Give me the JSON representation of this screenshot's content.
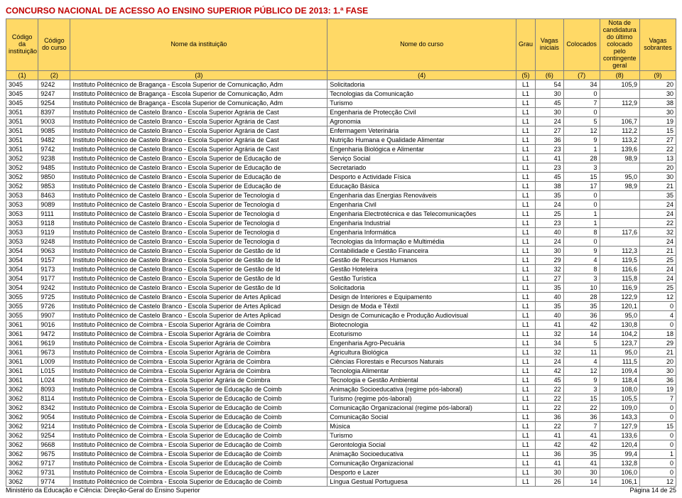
{
  "title": "CONCURSO NACIONAL DE ACESSO AO ENSINO SUPERIOR PÚBLICO DE 2013: 1.ª FASE",
  "headers": {
    "c1": "Código da instituição",
    "c2": "Código do curso",
    "c3": "Nome da instituição",
    "c4": "Nome do curso",
    "c5": "Grau",
    "c6": "Vagas iniciais",
    "c7": "Colocados",
    "c8": "Nota de candidatura do último colocado pelo contingente geral",
    "c9": "Vagas sobrantes"
  },
  "idxRow": [
    "(1)",
    "(2)",
    "(3)",
    "(4)",
    "(5)",
    "(6)",
    "(7)",
    "(8)",
    "(9)"
  ],
  "rows": [
    [
      "3045",
      "9242",
      "Instituto Politécnico de Bragança - Escola Superior de Comunicação, Adm",
      "Solicitadoria",
      "L1",
      "54",
      "34",
      "105,9",
      "20"
    ],
    [
      "3045",
      "9247",
      "Instituto Politécnico de Bragança - Escola Superior de Comunicação, Adm",
      "Tecnologias da Comunicação",
      "L1",
      "30",
      "0",
      "",
      "30"
    ],
    [
      "3045",
      "9254",
      "Instituto Politécnico de Bragança - Escola Superior de Comunicação, Adm",
      "Turismo",
      "L1",
      "45",
      "7",
      "112,9",
      "38"
    ],
    [
      "3051",
      "8397",
      "Instituto Politécnico de Castelo Branco - Escola Superior Agrária de Cast",
      "Engenharia de Protecção Civil",
      "L1",
      "30",
      "0",
      "",
      "30"
    ],
    [
      "3051",
      "9003",
      "Instituto Politécnico de Castelo Branco - Escola Superior Agrária de Cast",
      "Agronomia",
      "L1",
      "24",
      "5",
      "106,7",
      "19"
    ],
    [
      "3051",
      "9085",
      "Instituto Politécnico de Castelo Branco - Escola Superior Agrária de Cast",
      "Enfermagem Veterinária",
      "L1",
      "27",
      "12",
      "112,2",
      "15"
    ],
    [
      "3051",
      "9482",
      "Instituto Politécnico de Castelo Branco - Escola Superior Agrária de Cast",
      "Nutrição Humana e Qualidade Alimentar",
      "L1",
      "36",
      "9",
      "113,2",
      "27"
    ],
    [
      "3051",
      "9742",
      "Instituto Politécnico de Castelo Branco - Escola Superior Agrária de Cast",
      "Engenharia Biológica e Alimentar",
      "L1",
      "23",
      "1",
      "139,6",
      "22"
    ],
    [
      "3052",
      "9238",
      "Instituto Politécnico de Castelo Branco - Escola Superior de Educação de",
      "Serviço Social",
      "L1",
      "41",
      "28",
      "98,9",
      "13"
    ],
    [
      "3052",
      "9485",
      "Instituto Politécnico de Castelo Branco - Escola Superior de Educação de",
      "Secretariado",
      "L1",
      "23",
      "3",
      "",
      "20"
    ],
    [
      "3052",
      "9850",
      "Instituto Politécnico de Castelo Branco - Escola Superior de Educação de",
      "Desporto e Actividade Física",
      "L1",
      "45",
      "15",
      "95,0",
      "30"
    ],
    [
      "3052",
      "9853",
      "Instituto Politécnico de Castelo Branco - Escola Superior de Educação de",
      "Educação Básica",
      "L1",
      "38",
      "17",
      "98,9",
      "21"
    ],
    [
      "3053",
      "8463",
      "Instituto Politécnico de Castelo Branco - Escola Superior de Tecnologia d",
      "Engenharia das Energias Renováveis",
      "L1",
      "35",
      "0",
      "",
      "35"
    ],
    [
      "3053",
      "9089",
      "Instituto Politécnico de Castelo Branco - Escola Superior de Tecnologia d",
      "Engenharia Civil",
      "L1",
      "24",
      "0",
      "",
      "24"
    ],
    [
      "3053",
      "9111",
      "Instituto Politécnico de Castelo Branco - Escola Superior de Tecnologia d",
      "Engenharia Electrotécnica e das Telecomunicações",
      "L1",
      "25",
      "1",
      "",
      "24"
    ],
    [
      "3053",
      "9118",
      "Instituto Politécnico de Castelo Branco - Escola Superior de Tecnologia d",
      "Engenharia Industrial",
      "L1",
      "23",
      "1",
      "",
      "22"
    ],
    [
      "3053",
      "9119",
      "Instituto Politécnico de Castelo Branco - Escola Superior de Tecnologia d",
      "Engenharia Informática",
      "L1",
      "40",
      "8",
      "117,6",
      "32"
    ],
    [
      "3053",
      "9248",
      "Instituto Politécnico de Castelo Branco - Escola Superior de Tecnologia d",
      "Tecnologias da Informação e Multimédia",
      "L1",
      "24",
      "0",
      "",
      "24"
    ],
    [
      "3054",
      "9063",
      "Instituto Politécnico de Castelo Branco - Escola Superior de Gestão de Id",
      "Contabilidade e Gestão Financeira",
      "L1",
      "30",
      "9",
      "112,3",
      "21"
    ],
    [
      "3054",
      "9157",
      "Instituto Politécnico de Castelo Branco - Escola Superior de Gestão de Id",
      "Gestão de Recursos Humanos",
      "L1",
      "29",
      "4",
      "119,5",
      "25"
    ],
    [
      "3054",
      "9173",
      "Instituto Politécnico de Castelo Branco - Escola Superior de Gestão de Id",
      "Gestão Hoteleira",
      "L1",
      "32",
      "8",
      "116,6",
      "24"
    ],
    [
      "3054",
      "9177",
      "Instituto Politécnico de Castelo Branco - Escola Superior de Gestão de Id",
      "Gestão Turística",
      "L1",
      "27",
      "3",
      "115,8",
      "24"
    ],
    [
      "3054",
      "9242",
      "Instituto Politécnico de Castelo Branco - Escola Superior de Gestão de Id",
      "Solicitadoria",
      "L1",
      "35",
      "10",
      "116,9",
      "25"
    ],
    [
      "3055",
      "9725",
      "Instituto Politécnico de Castelo Branco - Escola Superior de Artes Aplicad",
      "Design de Interiores e Equipamento",
      "L1",
      "40",
      "28",
      "122,9",
      "12"
    ],
    [
      "3055",
      "9726",
      "Instituto Politécnico de Castelo Branco - Escola Superior de Artes Aplicad",
      "Design de Moda e Têxtil",
      "L1",
      "35",
      "35",
      "120,1",
      "0"
    ],
    [
      "3055",
      "9907",
      "Instituto Politécnico de Castelo Branco - Escola Superior de Artes Aplicad",
      "Design de Comunicação e Produção Audiovisual",
      "L1",
      "40",
      "36",
      "95,0",
      "4"
    ],
    [
      "3061",
      "9016",
      "Instituto Politécnico de Coimbra - Escola Superior Agrária de Coimbra",
      "Biotecnologia",
      "L1",
      "41",
      "42",
      "130,8",
      "0"
    ],
    [
      "3061",
      "9472",
      "Instituto Politécnico de Coimbra - Escola Superior Agrária de Coimbra",
      "Ecoturismo",
      "L1",
      "32",
      "14",
      "104,2",
      "18"
    ],
    [
      "3061",
      "9619",
      "Instituto Politécnico de Coimbra - Escola Superior Agrária de Coimbra",
      "Engenharia Agro-Pecuária",
      "L1",
      "34",
      "5",
      "123,7",
      "29"
    ],
    [
      "3061",
      "9673",
      "Instituto Politécnico de Coimbra - Escola Superior Agrária de Coimbra",
      "Agricultura Biológica",
      "L1",
      "32",
      "11",
      "95,0",
      "21"
    ],
    [
      "3061",
      "L009",
      "Instituto Politécnico de Coimbra - Escola Superior Agrária de Coimbra",
      "Ciências Florestais e Recursos Naturais",
      "L1",
      "24",
      "4",
      "111,5",
      "20"
    ],
    [
      "3061",
      "L015",
      "Instituto Politécnico de Coimbra - Escola Superior Agrária de Coimbra",
      "Tecnologia Alimentar",
      "L1",
      "42",
      "12",
      "109,4",
      "30"
    ],
    [
      "3061",
      "L024",
      "Instituto Politécnico de Coimbra - Escola Superior Agrária de Coimbra",
      "Tecnologia e Gestão Ambiental",
      "L1",
      "45",
      "9",
      "118,4",
      "36"
    ],
    [
      "3062",
      "8093",
      "Instituto Politécnico de Coimbra - Escola Superior de Educação de Coimb",
      "Animação Socioeducativa (regime pós-laboral)",
      "L1",
      "22",
      "3",
      "108,0",
      "19"
    ],
    [
      "3062",
      "8114",
      "Instituto Politécnico de Coimbra - Escola Superior de Educação de Coimb",
      "Turismo (regime pós-laboral)",
      "L1",
      "22",
      "15",
      "105,5",
      "7"
    ],
    [
      "3062",
      "8342",
      "Instituto Politécnico de Coimbra - Escola Superior de Educação de Coimb",
      "Comunicação Organizacional (regime pós-laboral)",
      "L1",
      "22",
      "22",
      "109,0",
      "0"
    ],
    [
      "3062",
      "9054",
      "Instituto Politécnico de Coimbra - Escola Superior de Educação de Coimb",
      "Comunicação Social",
      "L1",
      "36",
      "36",
      "143,3",
      "0"
    ],
    [
      "3062",
      "9214",
      "Instituto Politécnico de Coimbra - Escola Superior de Educação de Coimb",
      "Música",
      "L1",
      "22",
      "7",
      "127,9",
      "15"
    ],
    [
      "3062",
      "9254",
      "Instituto Politécnico de Coimbra - Escola Superior de Educação de Coimb",
      "Turismo",
      "L1",
      "41",
      "41",
      "133,6",
      "0"
    ],
    [
      "3062",
      "9668",
      "Instituto Politécnico de Coimbra - Escola Superior de Educação de Coimb",
      "Gerontologia Social",
      "L1",
      "42",
      "42",
      "120,4",
      "0"
    ],
    [
      "3062",
      "9675",
      "Instituto Politécnico de Coimbra - Escola Superior de Educação de Coimb",
      "Animação Socioeducativa",
      "L1",
      "36",
      "35",
      "99,4",
      "1"
    ],
    [
      "3062",
      "9717",
      "Instituto Politécnico de Coimbra - Escola Superior de Educação de Coimb",
      "Comunicação Organizacional",
      "L1",
      "41",
      "41",
      "132,8",
      "0"
    ],
    [
      "3062",
      "9731",
      "Instituto Politécnico de Coimbra - Escola Superior de Educação de Coimb",
      "Desporto e Lazer",
      "L1",
      "30",
      "30",
      "106,0",
      "0"
    ],
    [
      "3062",
      "9774",
      "Instituto Politécnico de Coimbra - Escola Superior de Educação de Coimb",
      "Língua Gestual Portuguesa",
      "L1",
      "26",
      "14",
      "106,1",
      "12"
    ]
  ],
  "footer": {
    "left": "Ministério da Educação e Ciência: Direção-Geral do Ensino Superior",
    "right": "Página 14 de 25"
  }
}
